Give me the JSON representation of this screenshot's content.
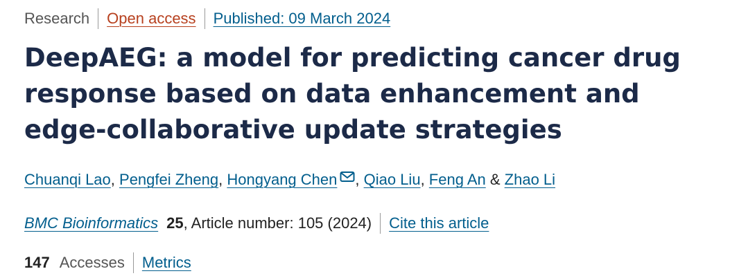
{
  "meta": {
    "article_type": "Research",
    "open_access_label": "Open access",
    "published_label": "Published: 09 March 2024"
  },
  "title": "DeepAEG: a model for predicting cancer drug response based on data enhancement and edge-collaborative update strategies",
  "authors": [
    {
      "name": "Chuanqi Lao",
      "after": ", "
    },
    {
      "name": "Pengfei Zheng",
      "after": ", "
    },
    {
      "name": "Hongyang Chen",
      "after": ", "
    },
    {
      "name": "Qiao Liu",
      "after": ", "
    },
    {
      "name": "Feng An",
      "after": " & "
    },
    {
      "name": "Zhao Li",
      "after": ""
    }
  ],
  "citation": {
    "journal": "BMC Bioinformatics",
    "volume": "25",
    "article_info": ", Article number: 105 (2024)",
    "cite_label": "Cite this article"
  },
  "metrics": {
    "accesses_count": "147",
    "accesses_label": "Accesses",
    "metrics_link": "Metrics"
  },
  "icons": {
    "correspondence": "envelope-icon"
  },
  "colors": {
    "title": "#1c2a48",
    "link": "#025e8d",
    "open_access": "#b7401e"
  }
}
